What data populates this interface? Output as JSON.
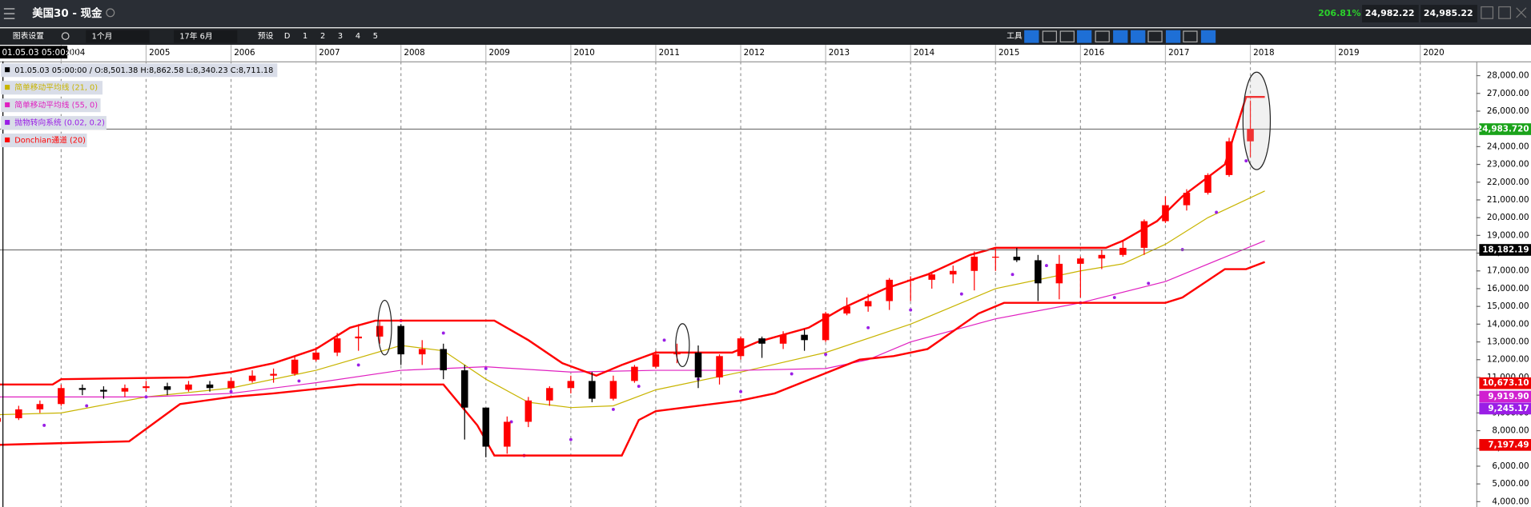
{
  "header": {
    "title": "美国30 - 现金",
    "change": "206.81%",
    "sell": "24,982.22",
    "buy": "24,985.22"
  },
  "toolbar": {
    "settings": "图表设置",
    "interval": "1个月",
    "date": "17年 6月",
    "preset": "预设",
    "buttons": [
      "D",
      "1",
      "2",
      "3",
      "4",
      "5"
    ],
    "tools": "工具"
  },
  "cursor_time": "01.05.03 05:00:00",
  "ohlc_label": "01.05.03 05:00:00 / O:8,501.38 H:8,862.58 L:8,340.23 C:8,711.18",
  "chart_data": {
    "type": "candlestick",
    "up_color": "#ff0000",
    "down_color": "#000000",
    "x": [
      2003.25,
      2003.5,
      2003.75,
      2004.0,
      2004.25,
      2004.5,
      2004.75,
      2005.0,
      2005.25,
      2005.5,
      2005.75,
      2006.0,
      2006.25,
      2006.5,
      2006.75,
      2007.0,
      2007.25,
      2007.5,
      2007.75,
      2008.0,
      2008.25,
      2008.5,
      2008.75,
      2009.0,
      2009.25,
      2009.5,
      2009.75,
      2010.0,
      2010.25,
      2010.5,
      2010.75,
      2011.0,
      2011.25,
      2011.5,
      2011.75,
      2012.0,
      2012.25,
      2012.5,
      2012.75,
      2013.0,
      2013.25,
      2013.5,
      2013.75,
      2014.0,
      2014.25,
      2014.5,
      2014.75,
      2015.0,
      2015.25,
      2015.5,
      2015.75,
      2016.0,
      2016.25,
      2016.5,
      2016.75,
      2017.0,
      2017.25,
      2017.5,
      2017.75,
      2018.0
    ],
    "open": [
      8501.38,
      8700,
      9200,
      9500,
      10400,
      10300,
      10200,
      10400,
      10500,
      10300,
      10600,
      10400,
      10800,
      11100,
      11200,
      12000,
      12400,
      13200,
      13300,
      13900,
      12300,
      12600,
      11400,
      9300,
      7100,
      8500,
      9700,
      10400,
      10800,
      9800,
      10800,
      11600,
      12300,
      12400,
      11000,
      12200,
      13200,
      12900,
      13400,
      13100,
      14600,
      15000,
      15300,
      16500,
      16500,
      16800,
      17000,
      17800,
      17800,
      17600,
      16300,
      17400,
      17700,
      17900,
      18300,
      19800,
      20700,
      21400,
      22400,
      24300
    ],
    "high": [
      8862.58,
      9400,
      9700,
      10600,
      10600,
      10500,
      10600,
      10800,
      10700,
      10800,
      10800,
      11000,
      11400,
      11500,
      12200,
      12700,
      13500,
      14000,
      14200,
      14000,
      13100,
      12900,
      11700,
      9300,
      8800,
      9900,
      10500,
      11100,
      11300,
      11100,
      11700,
      12500,
      12900,
      12800,
      12300,
      13300,
      13300,
      13600,
      13700,
      14700,
      15500,
      15700,
      16600,
      16700,
      16900,
      17300,
      18100,
      18300,
      18300,
      17900,
      17900,
      17800,
      18200,
      18700,
      19900,
      21200,
      21600,
      22500,
      24500,
      26600
    ],
    "low": [
      8340.23,
      8600,
      9000,
      9400,
      10000,
      9800,
      9900,
      10200,
      10000,
      10200,
      10200,
      10300,
      10700,
      10700,
      11100,
      11900,
      12200,
      12500,
      12900,
      11700,
      11700,
      10900,
      7500,
      6500,
      6700,
      8200,
      9400,
      10100,
      9600,
      9700,
      10700,
      11500,
      11800,
      10400,
      10600,
      12000,
      12100,
      12600,
      12500,
      13000,
      14500,
      14700,
      14800,
      15300,
      16000,
      16300,
      15900,
      17000,
      17500,
      15300,
      15400,
      15500,
      17100,
      17800,
      17900,
      19700,
      20400,
      21300,
      22300,
      23400
    ],
    "close": [
      8711.18,
      9200,
      9500,
      10400,
      10300,
      10200,
      10400,
      10500,
      10300,
      10600,
      10400,
      10800,
      11100,
      11200,
      12000,
      12400,
      13200,
      13300,
      13900,
      12300,
      12600,
      11400,
      9300,
      7100,
      8500,
      9700,
      10400,
      10800,
      9800,
      10800,
      11600,
      12300,
      12400,
      11000,
      12200,
      13200,
      12900,
      13400,
      13100,
      14600,
      15000,
      15300,
      16500,
      16500,
      16800,
      17000,
      17800,
      17800,
      17600,
      16300,
      17400,
      17700,
      17900,
      18300,
      19800,
      20700,
      21400,
      22400,
      24300,
      25000
    ],
    "series": [
      {
        "name": "简单移动平均线 (21, 0)",
        "color": "#c8b400",
        "type": "line",
        "x": [
          2003.25,
          2004,
          2005,
          2006,
          2007,
          2008,
          2008.5,
          2009,
          2009.5,
          2010,
          2010.5,
          2011,
          2012,
          2013,
          2014,
          2015,
          2016,
          2016.5,
          2017,
          2017.5,
          2018.17
        ],
        "values": [
          8900,
          9000,
          9900,
          10400,
          11400,
          12800,
          12500,
          10900,
          9600,
          9300,
          9400,
          10300,
          11300,
          12400,
          14000,
          16000,
          17000,
          17400,
          18500,
          20000,
          21500
        ]
      },
      {
        "name": "简单移动平均线 (55, 0)",
        "color": "#e020c0",
        "type": "line",
        "x": [
          2003.25,
          2005,
          2006,
          2007,
          2008,
          2009,
          2010,
          2011,
          2012,
          2013,
          2013.5,
          2014,
          2015,
          2016,
          2017,
          2018.17
        ],
        "values": [
          9900,
          9900,
          10100,
          10700,
          11400,
          11600,
          11300,
          11400,
          11400,
          11500,
          12000,
          13000,
          14300,
          15200,
          16400,
          18700
        ]
      },
      {
        "name": "抛物转向系统 (0.02, 0.2)",
        "color": "#9a1ee6",
        "type": "scatter",
        "x": [
          2003.25,
          2003.8,
          2004.3,
          2005,
          2006,
          2006.8,
          2007.5,
          2008,
          2008.5,
          2009,
          2009.3,
          2009.45,
          2010,
          2010.5,
          2010.8,
          2011.1,
          2011.5,
          2012,
          2012.6,
          2013,
          2013.5,
          2014,
          2014.6,
          2015.2,
          2015.6,
          2016,
          2016.4,
          2016.8,
          2017.2,
          2017.6,
          2017.95
        ],
        "values": [
          7200,
          8300,
          9400,
          9900,
          10200,
          10800,
          11700,
          14200,
          13500,
          11500,
          8500,
          6600,
          7500,
          9200,
          10500,
          13100,
          10900,
          10200,
          11200,
          12300,
          13800,
          14800,
          15700,
          16800,
          17300,
          15200,
          15500,
          16300,
          18200,
          20300,
          23200
        ]
      },
      {
        "name": "Donchian通道 (20)",
        "color": "#ff0000",
        "type": "band",
        "upper": {
          "x": [
            2003.25,
            2003.9,
            2004.0,
            2005.5,
            2006.0,
            2006.5,
            2007,
            2007.4,
            2007.7,
            2009.1,
            2009.5,
            2009.9,
            2010.3,
            2010.6,
            2011,
            2011.9,
            2012.2,
            2012.8,
            2013.2,
            2013.7,
            2014.2,
            2014.7,
            2015.0,
            2016.3,
            2016.5,
            2016.9,
            2017.2,
            2017.7,
            2017.95,
            2018.17
          ],
          "values": [
            10600,
            10600,
            10900,
            11000,
            11300,
            11800,
            12600,
            13800,
            14200,
            14200,
            13100,
            11800,
            11100,
            11700,
            12400,
            12400,
            13000,
            13800,
            14900,
            16000,
            16800,
            17900,
            18300,
            18300,
            18700,
            19800,
            21200,
            23000,
            26800,
            26800
          ]
        },
        "lower": {
          "x": [
            2003.25,
            2004.8,
            2005.4,
            2006,
            2006.5,
            2007.5,
            2008.5,
            2008.9,
            2009.1,
            2010.6,
            2010.8,
            2011,
            2011.5,
            2012,
            2012.4,
            2013.4,
            2013.8,
            2014.2,
            2014.5,
            2014.8,
            2015.1,
            2017.0,
            2017.2,
            2017.7,
            2017.95,
            2018.17
          ],
          "values": [
            7200,
            7400,
            9500,
            9900,
            10100,
            10600,
            10600,
            8300,
            6600,
            6600,
            8600,
            9100,
            9400,
            9700,
            10100,
            12000,
            12200,
            12600,
            13600,
            14600,
            15200,
            15200,
            15500,
            17100,
            17100,
            17500
          ]
        }
      }
    ],
    "xlim": [
      2003.28,
      2020.66
    ],
    "xticks": [
      2004,
      2005,
      2006,
      2007,
      2008,
      2009,
      2010,
      2011,
      2012,
      2013,
      2014,
      2015,
      2016,
      2017,
      2018,
      2019,
      2020
    ],
    "ylim": [
      3700,
      28800
    ],
    "yticks": [
      {
        "value": 4000,
        "label": "4,000.00"
      },
      {
        "value": 5000,
        "label": "5,000.00"
      },
      {
        "value": 6000,
        "label": "6,000.00"
      },
      {
        "value": 7000,
        "label": "7,000.00"
      },
      {
        "value": 8000,
        "label": "8,000.00"
      },
      {
        "value": 9000,
        "label": "9,000.00"
      },
      {
        "value": 10000,
        "label": "10,000.00"
      },
      {
        "value": 11000,
        "label": "11,000.00"
      },
      {
        "value": 12000,
        "label": "12,000.00"
      },
      {
        "value": 13000,
        "label": "13,000.00"
      },
      {
        "value": 14000,
        "label": "14,000.00"
      },
      {
        "value": 15000,
        "label": "15,000.00"
      },
      {
        "value": 16000,
        "label": "16,000.00"
      },
      {
        "value": 17000,
        "label": "17,000.00"
      },
      {
        "value": 18000,
        "label": "18,000.00"
      },
      {
        "value": 19000,
        "label": "19,000.00"
      },
      {
        "value": 20000,
        "label": "20,000.00"
      },
      {
        "value": 21000,
        "label": "21,000.00"
      },
      {
        "value": 22000,
        "label": "22,000.00"
      },
      {
        "value": 23000,
        "label": "23,000.00"
      },
      {
        "value": 24000,
        "label": "24,000.00"
      },
      {
        "value": 25000,
        "label": "25,000.00"
      },
      {
        "value": 26000,
        "label": "26,000.00"
      },
      {
        "value": 27000,
        "label": "27,000.00"
      },
      {
        "value": 28000,
        "label": "28,000.00"
      }
    ],
    "price_tags": [
      {
        "value": 24983.72,
        "label": "24,983.720",
        "color": "#1aa31a",
        "line": true
      },
      {
        "value": 18182.19,
        "label": "18,182.19",
        "color": "#000000",
        "line": true
      },
      {
        "value": 10673.1,
        "label": "10,673.10",
        "color": "#ee0000"
      },
      {
        "value": 9919.9,
        "label": "9,919.90",
        "color": "#d020d0"
      },
      {
        "value": 9245.17,
        "label": "9,245.17",
        "color": "#9a1ee6"
      },
      {
        "value": 7197.49,
        "label": "7,197.49",
        "color": "#ee0000"
      }
    ],
    "grid": true
  }
}
